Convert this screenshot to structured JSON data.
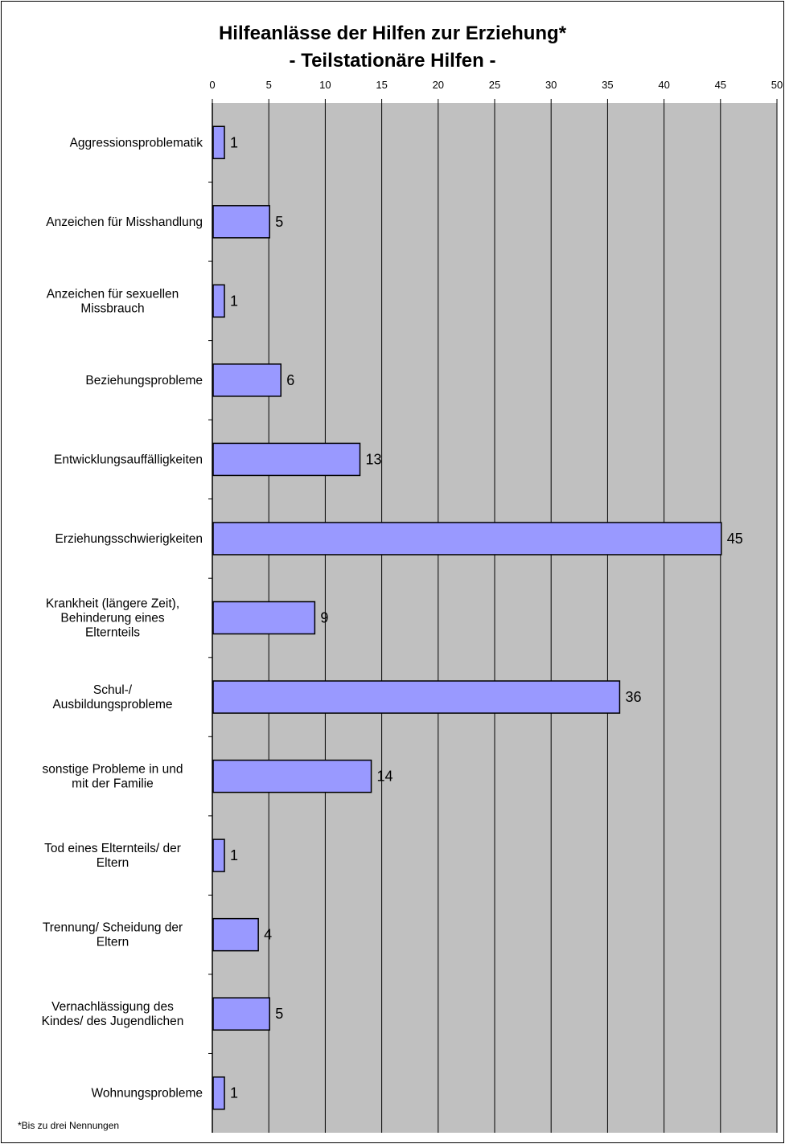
{
  "chart_data": {
    "type": "bar",
    "orientation": "horizontal",
    "title": "Hilfeanlässe der Hilfen zur Erziehung*",
    "subtitle": "- Teilstationäre Hilfen -",
    "categories": [
      "Aggressionsproblematik",
      "Anzeichen für Misshandlung",
      "Anzeichen für sexuellen Missbrauch",
      "Beziehungsprobleme",
      "Entwicklungsauffälligkeiten",
      "Erziehungsschwierigkeiten",
      "Krankheit (längere Zeit), Behinderung eines Elternteils",
      "Schul-/ Ausbildungsprobleme",
      "sonstige Probleme in und mit der Familie",
      "Tod eines Elternteils/ der Eltern",
      "Trennung/ Scheidung der Eltern",
      "Vernachlässigung des Kindes/ des Jugendlichen",
      "Wohnungsprobleme"
    ],
    "category_lines": [
      [
        "Aggressionsproblematik"
      ],
      [
        "Anzeichen für Misshandlung"
      ],
      [
        "Anzeichen für sexuellen",
        "Missbrauch"
      ],
      [
        "Beziehungsprobleme"
      ],
      [
        "Entwicklungsauffälligkeiten"
      ],
      [
        "Erziehungsschwierigkeiten"
      ],
      [
        "Krankheit (längere Zeit),",
        "Behinderung eines",
        "Elternteils"
      ],
      [
        "Schul-/",
        "Ausbildungsprobleme"
      ],
      [
        "sonstige Probleme in und",
        "mit der Familie"
      ],
      [
        "Tod eines Elternteils/ der",
        "Eltern"
      ],
      [
        "Trennung/ Scheidung der",
        "Eltern"
      ],
      [
        "Vernachlässigung des",
        "Kindes/ des Jugendlichen"
      ],
      [
        "Wohnungsprobleme"
      ]
    ],
    "values": [
      1,
      5,
      1,
      6,
      13,
      45,
      9,
      36,
      14,
      1,
      4,
      5,
      1
    ],
    "xlim": [
      0,
      50
    ],
    "xticks": [
      0,
      5,
      10,
      15,
      20,
      25,
      30,
      35,
      40,
      45,
      50
    ],
    "x_axis_position": "top",
    "grid": true,
    "legend": "none",
    "footnote": "*Bis zu drei Nennungen",
    "colors": {
      "bar_fill": "#9999FF",
      "bar_stroke": "#000000",
      "plot_background": "#C0C0C0",
      "grid": "#000000"
    }
  }
}
